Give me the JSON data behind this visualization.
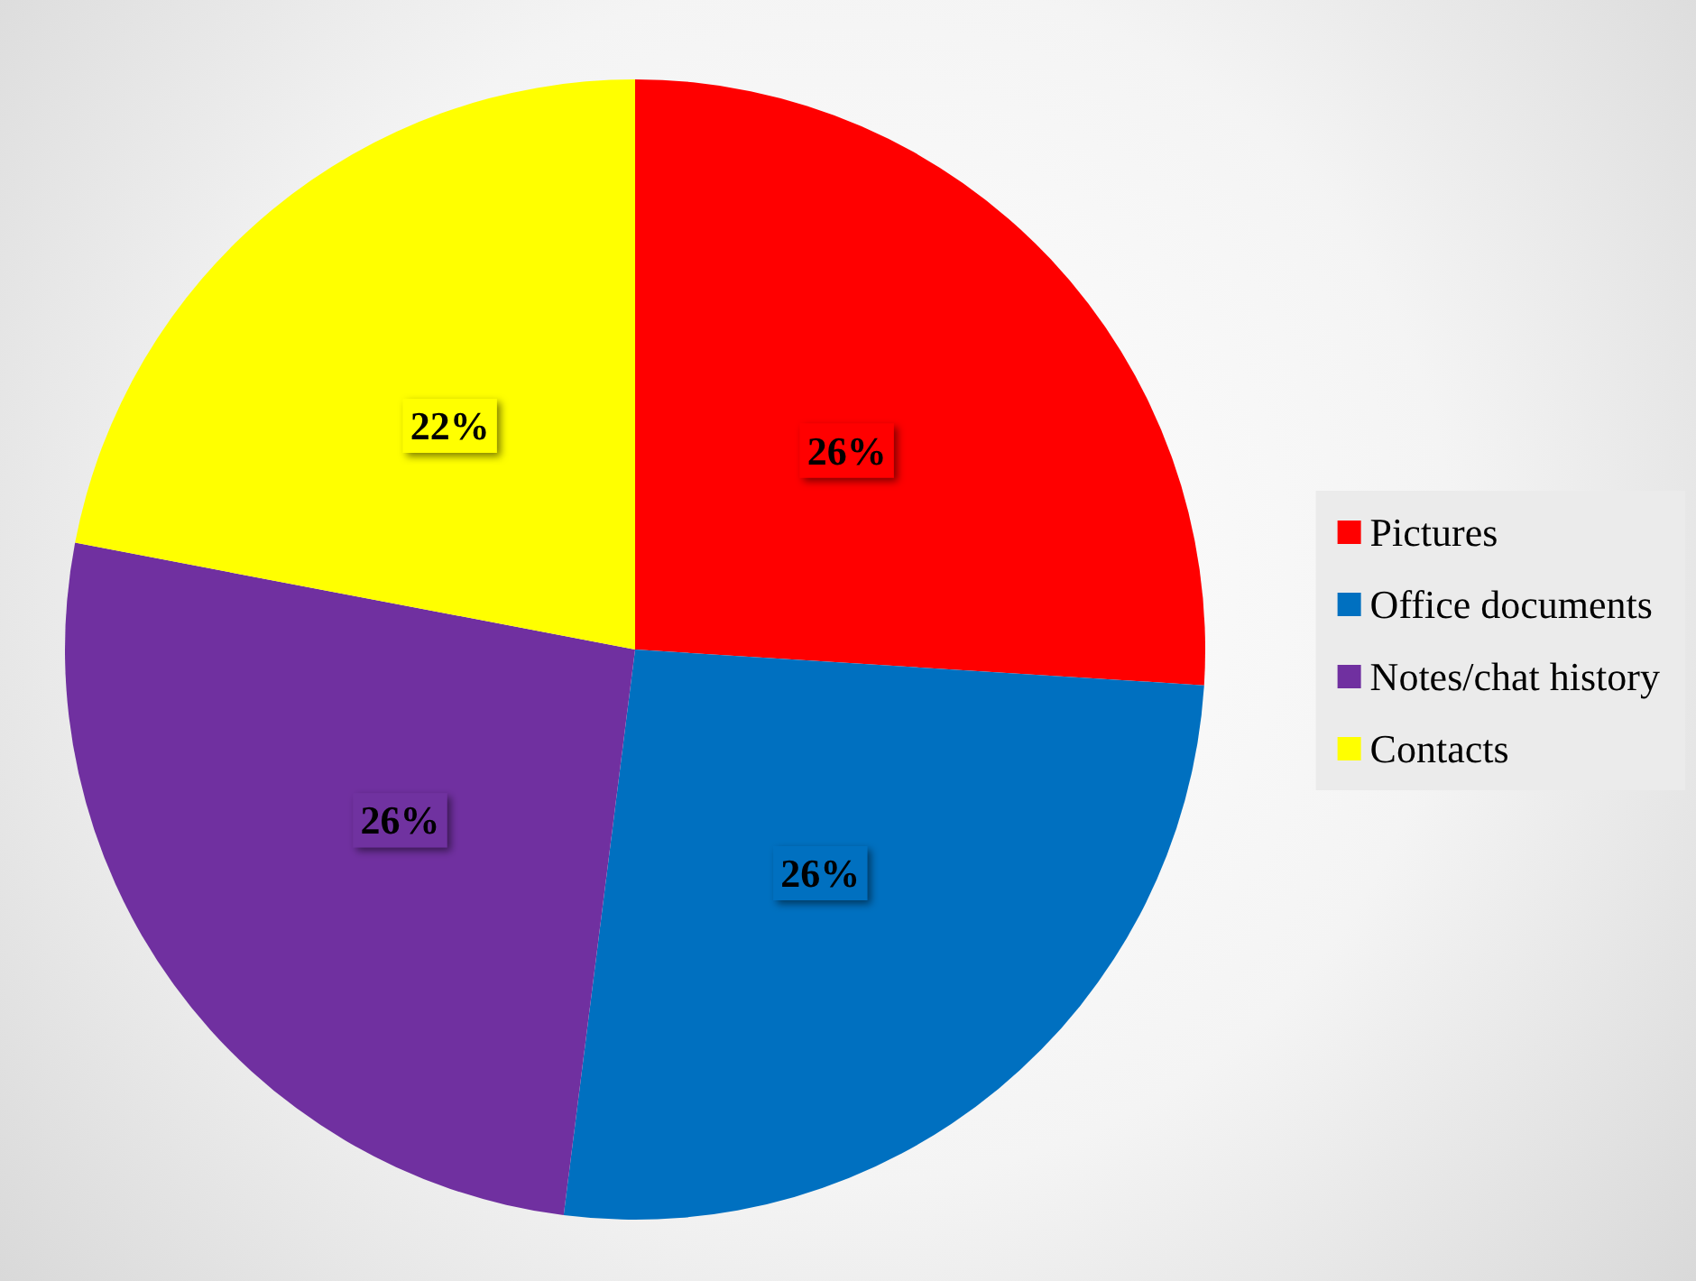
{
  "chart_data": {
    "type": "pie",
    "categories": [
      "Pictures",
      "Office documents",
      "Notes/chat history",
      "Contacts"
    ],
    "values": [
      26,
      26,
      26,
      22
    ],
    "colors": [
      "#ff0000",
      "#0070c0",
      "#7030a0",
      "#ffff00"
    ],
    "value_labels": [
      "26%",
      "26%",
      "26%",
      "22%"
    ],
    "legend": "right"
  }
}
